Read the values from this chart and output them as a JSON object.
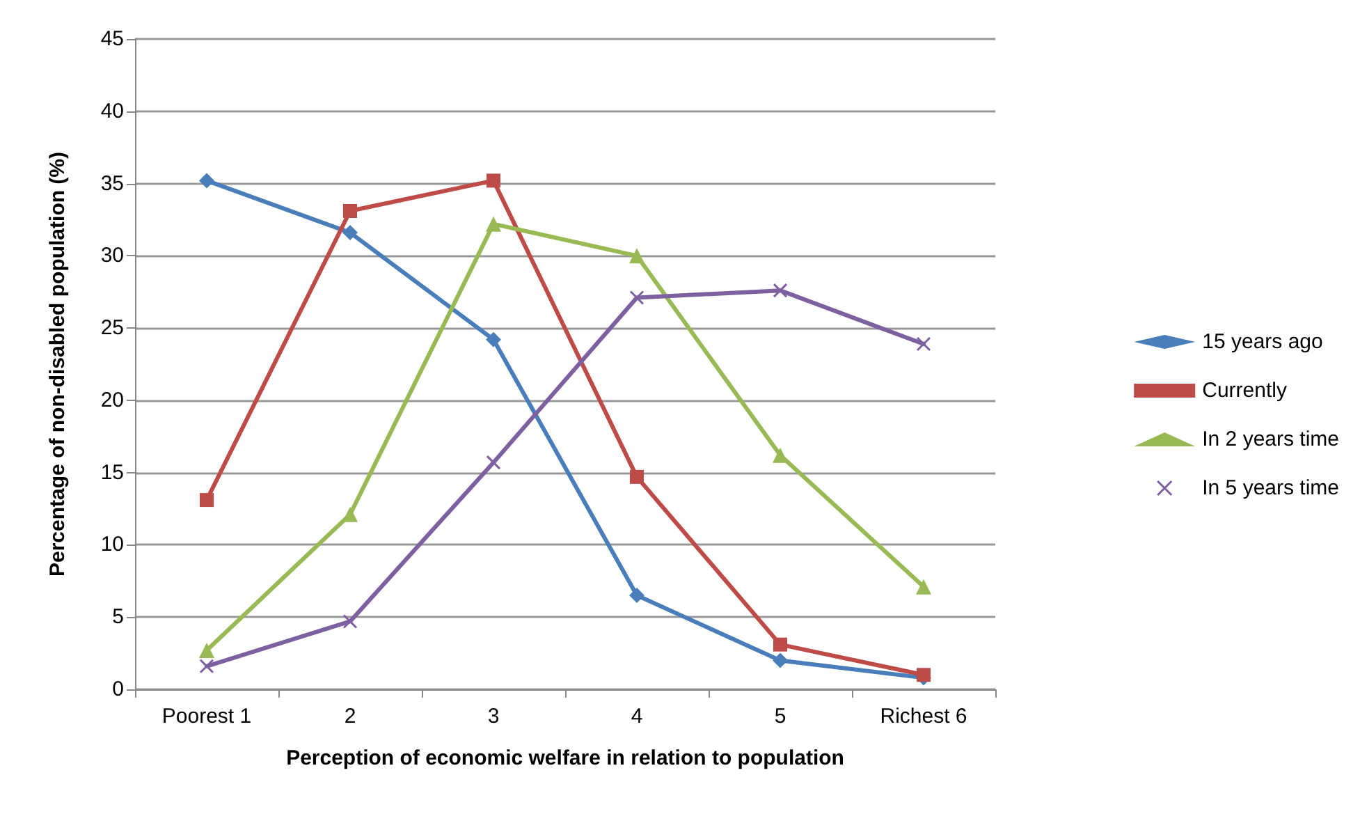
{
  "chart_data": {
    "type": "line",
    "xlabel": "Perception of economic welfare in relation to population",
    "ylabel": "Percentage of non-disabled population (%)",
    "categories": [
      "Poorest 1",
      "2",
      "3",
      "4",
      "5",
      "Richest 6"
    ],
    "series": [
      {
        "name": "15 years ago",
        "color": "#4a7ebb",
        "marker": "diamond",
        "values": [
          35.2,
          31.6,
          24.2,
          6.5,
          2.0,
          0.8
        ]
      },
      {
        "name": "Currently",
        "color": "#be4b48",
        "marker": "square",
        "values": [
          13.1,
          33.1,
          35.2,
          14.7,
          3.1,
          1.0
        ]
      },
      {
        "name": "In 2 years time",
        "color": "#98b954",
        "marker": "triangle",
        "values": [
          2.7,
          12.1,
          32.2,
          30.0,
          16.2,
          7.1
        ]
      },
      {
        "name": "In 5 years time",
        "color": "#7d60a0",
        "marker": "cross",
        "values": [
          1.6,
          4.7,
          15.7,
          27.1,
          27.6,
          23.9
        ]
      }
    ],
    "ylim": [
      0,
      45
    ],
    "yticks": [
      0,
      5,
      10,
      15,
      20,
      25,
      30,
      35,
      40,
      45
    ],
    "grid": "y",
    "legend": "right",
    "line_style": "solid"
  }
}
